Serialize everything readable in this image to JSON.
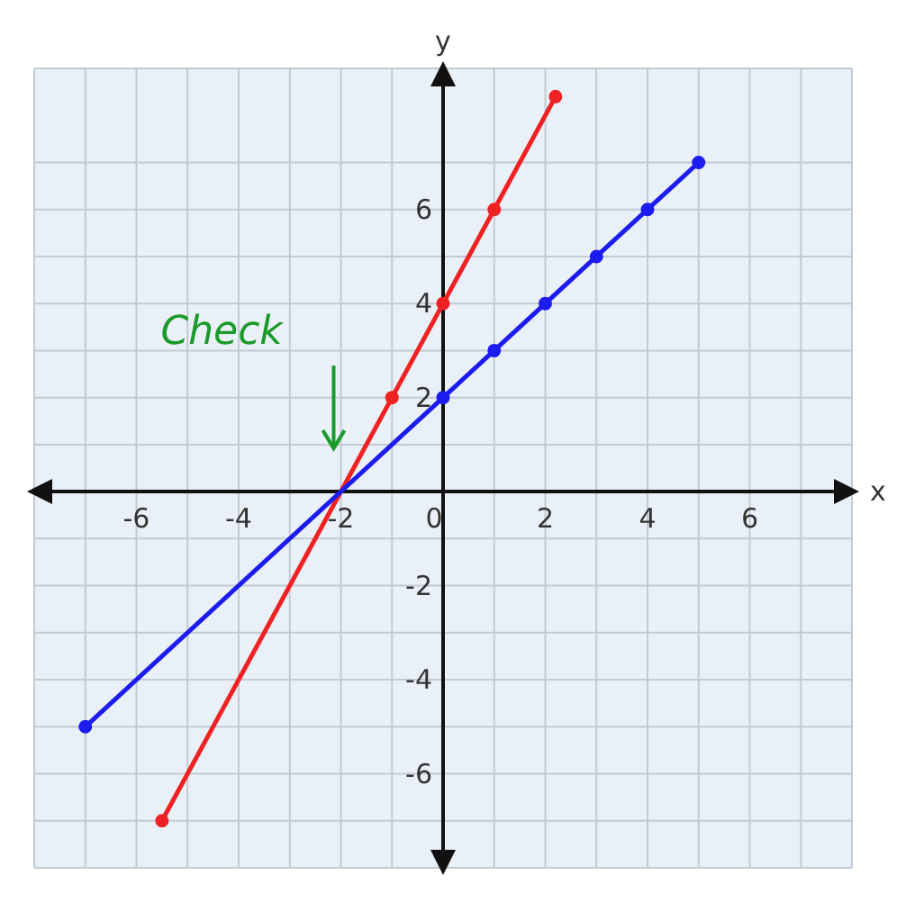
{
  "chart_data": {
    "type": "line",
    "xlabel": "x",
    "ylabel": "y",
    "xlim": [
      -8,
      8
    ],
    "ylim": [
      -8,
      9
    ],
    "xticks": [
      {
        "value": -7,
        "label": null
      },
      -6,
      {
        "value": -5,
        "label": null
      },
      -4,
      {
        "value": -3,
        "label": null
      },
      -2,
      {
        "value": -1,
        "label": null
      },
      0,
      {
        "value": 1,
        "label": null
      },
      2,
      {
        "value": 3,
        "label": null
      },
      4,
      {
        "value": 5,
        "label": null
      },
      6,
      {
        "value": 7,
        "label": null
      }
    ],
    "yticks": [
      {
        "value": -7,
        "label": null
      },
      -6,
      {
        "value": -5,
        "label": null
      },
      -4,
      {
        "value": -3,
        "label": null
      },
      -2,
      {
        "value": -1,
        "label": null
      },
      {
        "value": 0,
        "label": null
      },
      {
        "value": 1,
        "label": null
      },
      2,
      {
        "value": 3,
        "label": null
      },
      4,
      {
        "value": 5,
        "label": null
      },
      6,
      {
        "value": 7,
        "label": null
      }
    ],
    "grid": true,
    "marker": "circle",
    "line_style": "solid",
    "series": [
      {
        "color": "#ee2222",
        "x": [
          -5.5,
          -1,
          0,
          1,
          2.2
        ],
        "values": [
          -7,
          2,
          4,
          6,
          8.4
        ]
      },
      {
        "color": "#1c1cee",
        "x": [
          -7,
          0,
          1,
          2,
          3,
          4,
          5
        ],
        "values": [
          -5,
          2,
          3,
          4,
          5,
          6,
          7
        ]
      }
    ],
    "annotations": [
      "Check"
    ]
  }
}
